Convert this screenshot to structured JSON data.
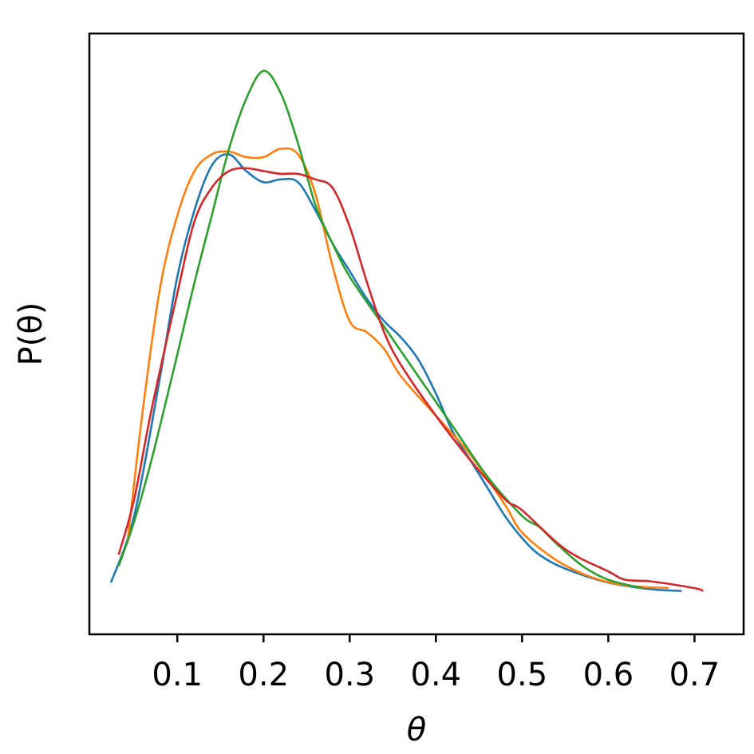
{
  "chart_data": {
    "type": "line",
    "title": "",
    "xlabel": "θ",
    "ylabel": "P(θ)",
    "xlim": [
      -0.002,
      0.757
    ],
    "ylim": [
      0,
      1
    ],
    "xticks": [
      0.1,
      0.2,
      0.3,
      0.4,
      0.5,
      0.6,
      0.7
    ],
    "xtick_labels": [
      "0.1",
      "0.2",
      "0.3",
      "0.4",
      "0.5",
      "0.6",
      "0.7"
    ],
    "yticks": [],
    "grid": false,
    "legend": "none",
    "series": [
      {
        "color": "#1f77b4",
        "x": [
          0.023,
          0.05,
          0.08,
          0.1,
          0.12,
          0.14,
          0.16,
          0.18,
          0.2,
          0.22,
          0.24,
          0.26,
          0.28,
          0.3,
          0.32,
          0.34,
          0.36,
          0.38,
          0.4,
          0.42,
          0.44,
          0.46,
          0.48,
          0.5,
          0.52,
          0.55,
          0.6,
          0.65,
          0.685
        ],
        "y": [
          0.05,
          0.17,
          0.42,
          0.6,
          0.72,
          0.8,
          0.82,
          0.79,
          0.77,
          0.775,
          0.77,
          0.72,
          0.66,
          0.61,
          0.56,
          0.52,
          0.49,
          0.45,
          0.39,
          0.32,
          0.27,
          0.22,
          0.17,
          0.13,
          0.1,
          0.075,
          0.05,
          0.038,
          0.035
        ]
      },
      {
        "color": "#ff7f0e",
        "x": [
          0.042,
          0.06,
          0.08,
          0.1,
          0.12,
          0.14,
          0.16,
          0.18,
          0.2,
          0.22,
          0.24,
          0.26,
          0.28,
          0.3,
          0.32,
          0.34,
          0.36,
          0.4,
          0.44,
          0.48,
          0.5,
          0.54,
          0.58,
          0.62,
          0.67
        ],
        "y": [
          0.12,
          0.36,
          0.58,
          0.71,
          0.79,
          0.82,
          0.825,
          0.815,
          0.815,
          0.83,
          0.82,
          0.75,
          0.62,
          0.52,
          0.5,
          0.47,
          0.42,
          0.35,
          0.28,
          0.19,
          0.14,
          0.09,
          0.06,
          0.045,
          0.04
        ]
      },
      {
        "color": "#2ca02c",
        "x": [
          0.032,
          0.05,
          0.07,
          0.1,
          0.12,
          0.14,
          0.16,
          0.18,
          0.2,
          0.22,
          0.24,
          0.26,
          0.28,
          0.3,
          0.34,
          0.38,
          0.42,
          0.46,
          0.5,
          0.52,
          0.54,
          0.57,
          0.6,
          0.64
        ],
        "y": [
          0.08,
          0.16,
          0.27,
          0.46,
          0.59,
          0.71,
          0.83,
          0.92,
          0.97,
          0.93,
          0.84,
          0.73,
          0.66,
          0.6,
          0.51,
          0.42,
          0.33,
          0.24,
          0.17,
          0.15,
          0.12,
          0.08,
          0.055,
          0.04
        ]
      },
      {
        "color": "#d62728",
        "x": [
          0.032,
          0.05,
          0.07,
          0.1,
          0.12,
          0.14,
          0.16,
          0.18,
          0.2,
          0.22,
          0.24,
          0.26,
          0.28,
          0.3,
          0.32,
          0.34,
          0.36,
          0.4,
          0.44,
          0.48,
          0.5,
          0.55,
          0.6,
          0.62,
          0.65,
          0.7,
          0.71
        ],
        "y": [
          0.1,
          0.2,
          0.36,
          0.57,
          0.7,
          0.76,
          0.79,
          0.795,
          0.79,
          0.785,
          0.785,
          0.775,
          0.76,
          0.69,
          0.59,
          0.5,
          0.44,
          0.35,
          0.27,
          0.2,
          0.18,
          0.11,
          0.07,
          0.055,
          0.052,
          0.04,
          0.035
        ]
      }
    ]
  }
}
